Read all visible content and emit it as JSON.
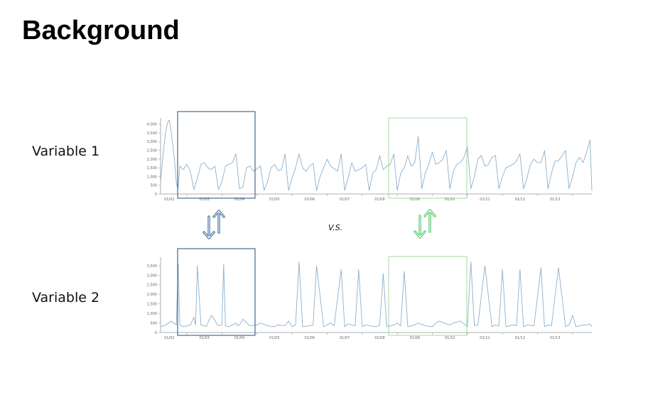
{
  "slide": {
    "title": "Background",
    "vs_label": "V.S."
  },
  "labels": {
    "variable_1": "Variable 1",
    "variable_2": "Variable 2"
  },
  "colors": {
    "line": "#8cb0cc",
    "axis": "#999999",
    "tick_text": "#666666",
    "blue_box": "#1f4e79",
    "green_box": "#8fd08a",
    "blue_arrow": "#2e5f8c",
    "green_arrow": "#3fbf5a"
  },
  "icons": {
    "left_arrows": "up-down-arrows-icon",
    "right_arrows": "up-down-arrows-icon"
  },
  "chart_data": [
    {
      "type": "line",
      "title": "",
      "xlabel": "",
      "ylabel": "",
      "ylim": [
        0,
        4200
      ],
      "y_ticks": [
        "0",
        "500",
        "1,000",
        "1,500",
        "2,000",
        "2,500",
        "3,000",
        "3,500",
        "4,000"
      ],
      "y_tick_values": [
        0,
        500,
        1000,
        1500,
        2000,
        2500,
        3000,
        3500,
        4000
      ],
      "x_ticks": [
        "01/02",
        "01/03",
        "01/04",
        "01/05",
        "01/06",
        "01/07",
        "01/08",
        "01/09",
        "01/10",
        "01/11",
        "01/12",
        "01/13"
      ],
      "x_range_days": [
        1.25,
        13.55
      ],
      "grid": false,
      "series": [
        {
          "x": [
            1.25,
            1.3,
            1.35,
            1.4,
            1.45,
            1.5,
            1.55,
            1.6,
            1.65,
            1.7,
            1.75,
            1.8,
            1.9,
            2.0,
            2.1,
            2.2,
            2.3,
            2.4,
            2.5,
            2.6,
            2.7,
            2.8,
            2.9,
            3.0,
            3.1,
            3.2,
            3.3,
            3.4,
            3.5,
            3.6,
            3.7,
            3.8,
            3.9,
            4.0,
            4.1,
            4.2,
            4.3,
            4.4,
            4.5,
            4.6,
            4.7,
            4.8,
            4.9,
            5.0,
            5.1,
            5.2,
            5.3,
            5.4,
            5.5,
            5.6,
            5.7,
            5.8,
            5.9,
            6.0,
            6.1,
            6.2,
            6.3,
            6.4,
            6.5,
            6.6,
            6.7,
            6.8,
            6.9,
            7.0,
            7.1,
            7.2,
            7.3,
            7.4,
            7.5,
            7.6,
            7.7,
            7.8,
            7.9,
            8.0,
            8.1,
            8.2,
            8.3,
            8.4,
            8.5,
            8.6,
            8.7,
            8.8,
            8.9,
            9.0,
            9.1,
            9.2,
            9.3,
            9.4,
            9.5,
            9.6,
            9.7,
            9.8,
            9.9,
            10.0,
            10.1,
            10.2,
            10.3,
            10.4,
            10.5,
            10.6,
            10.7,
            10.8,
            10.9,
            11.0,
            11.1,
            11.2,
            11.3,
            11.4,
            11.5,
            11.6,
            11.7,
            11.8,
            11.9,
            12.0,
            12.1,
            12.2,
            12.3,
            12.4,
            12.5,
            12.6,
            12.7,
            12.8,
            12.9,
            13.0,
            13.1,
            13.2,
            13.3,
            13.4,
            13.5,
            13.55
          ],
          "y": [
            700,
            1800,
            2800,
            3600,
            4100,
            4250,
            3600,
            2800,
            1900,
            600,
            300,
            1600,
            1400,
            1700,
            1300,
            250,
            900,
            1700,
            1800,
            1500,
            1400,
            1600,
            250,
            700,
            1600,
            1700,
            1800,
            2300,
            300,
            400,
            1500,
            1600,
            1300,
            1450,
            1600,
            200,
            700,
            1500,
            1700,
            1350,
            1400,
            2300,
            200,
            900,
            1500,
            2300,
            1500,
            1300,
            1600,
            1750,
            200,
            1000,
            1500,
            2000,
            1600,
            1450,
            1300,
            2300,
            200,
            900,
            1800,
            1300,
            1400,
            1500,
            1700,
            200,
            1200,
            1400,
            2200,
            1400,
            1600,
            1700,
            2300,
            200,
            1200,
            1500,
            2200,
            1600,
            1800,
            3300,
            300,
            1200,
            1700,
            2400,
            1700,
            1800,
            2000,
            2500,
            300,
            1300,
            1700,
            1800,
            2100,
            2700,
            300,
            1000,
            2000,
            2200,
            1600,
            1700,
            2100,
            2200,
            300,
            1000,
            1500,
            1600,
            1700,
            1900,
            2300,
            300,
            900,
            1700,
            2000,
            1800,
            1800,
            2500,
            300,
            1200,
            1900,
            1900,
            2200,
            2500,
            300,
            1000,
            1800,
            2100,
            1800,
            2400,
            3100,
            200
          ]
        }
      ]
    },
    {
      "type": "line",
      "title": "",
      "xlabel": "",
      "ylabel": "",
      "ylim": [
        0,
        3800
      ],
      "y_ticks": [
        "0",
        "500",
        "1,000",
        "1,500",
        "2,000",
        "2,500",
        "3,000",
        "3,500"
      ],
      "y_tick_values": [
        0,
        500,
        1000,
        1500,
        2000,
        2500,
        3000,
        3500
      ],
      "x_ticks": [
        "01/02",
        "01/03",
        "01/04",
        "01/05",
        "01/06",
        "01/07",
        "01/08",
        "01/09",
        "01/10",
        "01/11",
        "01/12",
        "01/13"
      ],
      "x_range_days": [
        1.25,
        13.55
      ],
      "grid": false,
      "series": [
        {
          "x": [
            1.25,
            1.4,
            1.55,
            1.7,
            1.75,
            1.8,
            1.85,
            1.9,
            2.1,
            2.2,
            2.25,
            2.3,
            2.4,
            2.5,
            2.55,
            2.6,
            2.7,
            2.9,
            3.0,
            3.05,
            3.1,
            3.2,
            3.3,
            3.4,
            3.45,
            3.5,
            3.6,
            3.8,
            4.0,
            4.1,
            4.3,
            4.5,
            4.6,
            4.8,
            4.9,
            5.0,
            5.1,
            5.2,
            5.3,
            5.5,
            5.6,
            5.7,
            5.9,
            6.0,
            6.1,
            6.2,
            6.4,
            6.5,
            6.6,
            6.7,
            6.8,
            6.9,
            7.0,
            7.1,
            7.2,
            7.4,
            7.5,
            7.6,
            7.7,
            7.9,
            8.0,
            8.1,
            8.2,
            8.3,
            8.4,
            8.5,
            8.6,
            8.8,
            9.0,
            9.1,
            9.2,
            9.4,
            9.5,
            9.6,
            9.8,
            10.0,
            10.1,
            10.2,
            10.3,
            10.5,
            10.7,
            10.8,
            10.9,
            11.0,
            11.1,
            11.3,
            11.4,
            11.5,
            11.6,
            11.7,
            11.9,
            12.1,
            12.2,
            12.3,
            12.4,
            12.6,
            12.8,
            12.9,
            13.0,
            13.1,
            13.3,
            13.4,
            13.5,
            13.55
          ],
          "y": [
            300,
            400,
            600,
            400,
            3600,
            400,
            350,
            300,
            400,
            800,
            400,
            3500,
            400,
            350,
            300,
            500,
            900,
            350,
            400,
            3600,
            350,
            300,
            400,
            500,
            350,
            400,
            700,
            350,
            400,
            500,
            350,
            300,
            400,
            350,
            600,
            300,
            400,
            3700,
            300,
            350,
            400,
            3500,
            300,
            400,
            500,
            350,
            3300,
            300,
            450,
            400,
            350,
            3300,
            300,
            400,
            350,
            300,
            400,
            3100,
            300,
            400,
            500,
            350,
            3200,
            300,
            350,
            400,
            500,
            350,
            300,
            500,
            600,
            450,
            400,
            500,
            600,
            300,
            3700,
            350,
            400,
            3500,
            300,
            400,
            350,
            3300,
            300,
            400,
            350,
            3300,
            300,
            400,
            350,
            3400,
            300,
            400,
            350,
            3400,
            300,
            400,
            900,
            300,
            400,
            400,
            450,
            300
          ]
        }
      ]
    }
  ]
}
